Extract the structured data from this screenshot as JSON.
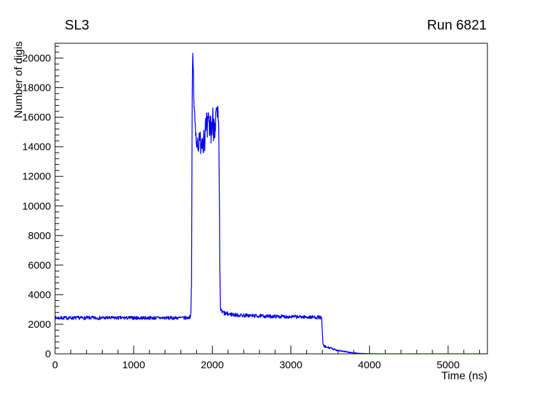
{
  "titles": {
    "left": "SL3",
    "right": "Run 6821"
  },
  "chart_data": {
    "type": "line",
    "title": "SL3",
    "run_label": "Run 6821",
    "xlabel": "Time (ns)",
    "ylabel": "Number of digis",
    "xlim": [
      0,
      5500
    ],
    "ylim": [
      0,
      21000
    ],
    "grid": false,
    "legend": "none",
    "x_major_ticks": [
      0,
      1000,
      2000,
      3000,
      4000,
      5000
    ],
    "x_tick_labels": [
      "0",
      "1000",
      "2000",
      "3000",
      "4000",
      "5000"
    ],
    "x_minor_step": 200,
    "y_major_ticks": [
      0,
      2000,
      4000,
      6000,
      8000,
      10000,
      12000,
      14000,
      16000,
      18000,
      20000
    ],
    "y_tick_labels": [
      "0",
      "2000",
      "4000",
      "6000",
      "8000",
      "10000",
      "12000",
      "14000",
      "16000",
      "18000",
      "20000"
    ],
    "y_minor_step": 400,
    "line_color": "#0000ee",
    "background_color": "#ffffff",
    "sample_step_ns": 4,
    "noise_seed": 7,
    "profile_keypoints": [
      [
        0,
        2430,
        120
      ],
      [
        1200,
        2430,
        120
      ],
      [
        1690,
        2430,
        120
      ],
      [
        1726,
        2550,
        150
      ],
      [
        1737,
        5500,
        700
      ],
      [
        1744,
        16500,
        900
      ],
      [
        1751,
        20450,
        150
      ],
      [
        1758,
        19200,
        700
      ],
      [
        1770,
        16400,
        900
      ],
      [
        1788,
        14900,
        700
      ],
      [
        1812,
        14250,
        650
      ],
      [
        1842,
        14300,
        800
      ],
      [
        1872,
        14650,
        1100
      ],
      [
        1912,
        14950,
        1300
      ],
      [
        1958,
        15200,
        1300
      ],
      [
        2004,
        15550,
        1300
      ],
      [
        2038,
        15850,
        1250
      ],
      [
        2062,
        16050,
        1050
      ],
      [
        2078,
        15600,
        950
      ],
      [
        2088,
        12000,
        900
      ],
      [
        2096,
        5600,
        500
      ],
      [
        2104,
        3150,
        300
      ],
      [
        2116,
        2840,
        200
      ],
      [
        2170,
        2710,
        150
      ],
      [
        2340,
        2610,
        130
      ],
      [
        2690,
        2540,
        120
      ],
      [
        3090,
        2500,
        120
      ],
      [
        3370,
        2470,
        120
      ],
      [
        3392,
        2350,
        150
      ],
      [
        3400,
        1300,
        180
      ],
      [
        3410,
        580,
        100
      ],
      [
        3438,
        455,
        85
      ],
      [
        3505,
        395,
        70
      ],
      [
        3550,
        285,
        60
      ],
      [
        3635,
        205,
        50
      ],
      [
        3712,
        122,
        40
      ],
      [
        3798,
        66,
        26
      ],
      [
        3876,
        30,
        15
      ],
      [
        3952,
        11,
        7
      ],
      [
        4038,
        4,
        3
      ],
      [
        4135,
        1,
        1
      ],
      [
        4290,
        0,
        0
      ],
      [
        5500,
        0,
        0
      ]
    ],
    "summary_points": {
      "baseline_level": 2430,
      "burst_start_ns": 1730,
      "burst_peak_value": 20600,
      "burst_peak_ns": 1750,
      "burst_plateau_range": [
        13500,
        17100
      ],
      "burst_end_ns": 2100,
      "post_burst_level": 2600,
      "falloff_start_ns": 3400,
      "tail_end_ns": 3950
    }
  }
}
